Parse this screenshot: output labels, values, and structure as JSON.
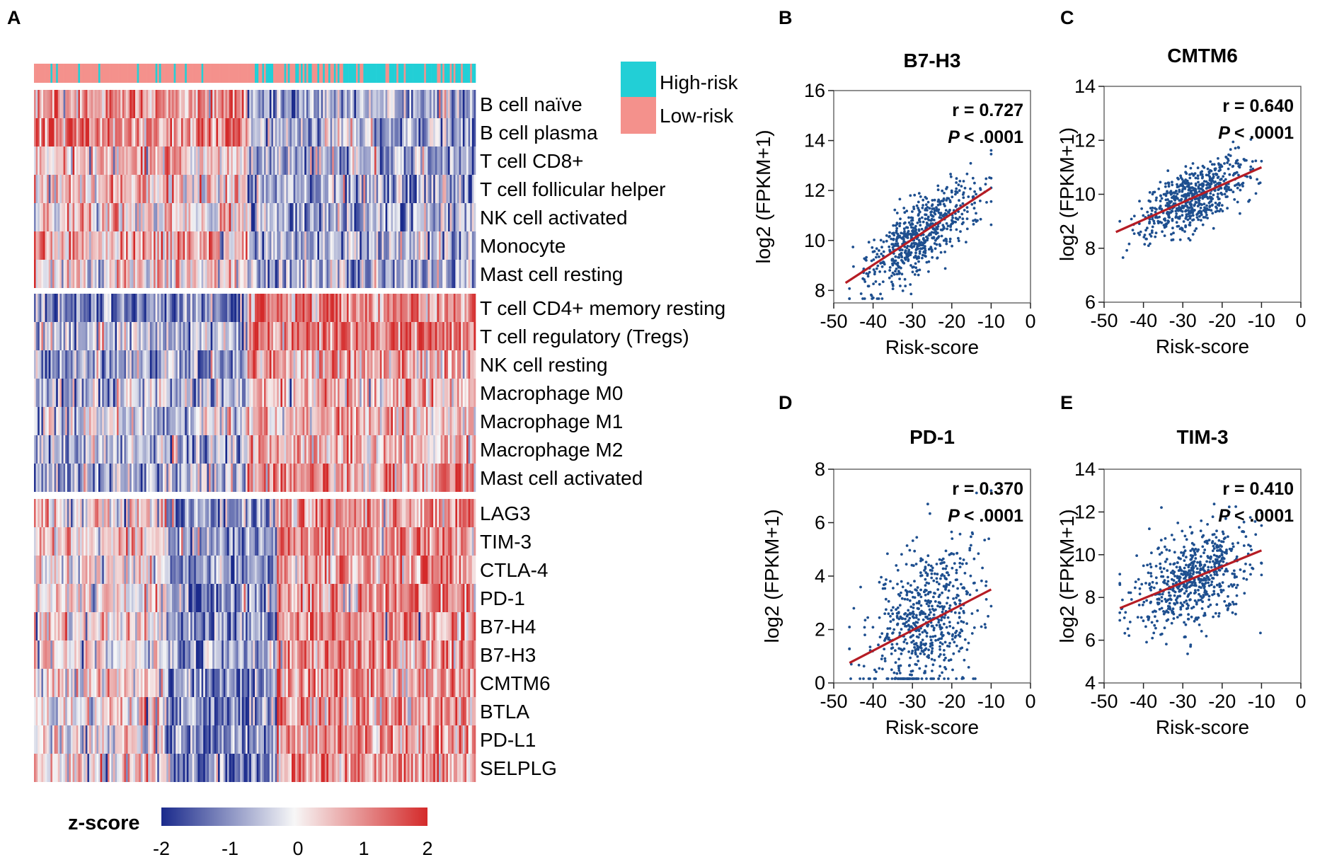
{
  "panels": {
    "A": "A",
    "B": "B",
    "C": "C",
    "D": "D",
    "E": "E"
  },
  "colors": {
    "high_risk": "#22cfd6",
    "low_risk": "#f4918c",
    "z_low": "#1a2a8c",
    "z_mid": "#f7f7f7",
    "z_high": "#d42a2a",
    "dot": "#1e4f8f",
    "fit": "#b51c24"
  },
  "heatmap": {
    "legend": {
      "high": "High-risk",
      "low": "Low-risk"
    },
    "rows": [
      "B cell naïve",
      "B cell plasma",
      "T cell CD8+",
      "T cell follicular helper",
      "NK cell activated",
      "Monocyte",
      "Mast cell resting",
      "T cell CD4+ memory resting",
      "T cell regulatory (Tregs)",
      "NK cell resting",
      "Macrophage M0",
      "Macrophage M1",
      "Macrophage M2",
      "Mast cell activated",
      "LAG3",
      "TIM-3",
      "CTLA-4",
      "PD-1",
      "B7-H4",
      "B7-H3",
      "CMTM6",
      "BTLA",
      "PD-L1",
      "SELPLG"
    ],
    "colorbar": {
      "label": "z-score",
      "ticks": [
        "-2",
        "-1",
        "0",
        "1",
        "2"
      ],
      "range": [
        -2,
        2
      ]
    }
  },
  "chart_data": [
    {
      "panel": "B",
      "type": "scatter",
      "title": "B7-H3",
      "xlabel": "Risk-score",
      "ylabel": "log2 (FPKM+1)",
      "xlim": [
        -50,
        0
      ],
      "ylim": [
        7.5,
        16
      ],
      "xticks": [
        -50,
        -40,
        -30,
        -20,
        -10,
        0
      ],
      "yticks": [
        8,
        10,
        12,
        14,
        16
      ],
      "r_label": "r = 0.727",
      "p_label": "< .0001",
      "p_symbol": "P",
      "fit": {
        "x0": -47,
        "y0": 8.3,
        "x1": -10,
        "y1": 12.1
      },
      "points": {
        "n": 650,
        "x_center": -28,
        "x_sd": 7,
        "x_range": [
          -46,
          -10
        ],
        "y_slope": 0.103,
        "y_intercept": 13.1,
        "y_sd": 0.72
      }
    },
    {
      "panel": "C",
      "type": "scatter",
      "title": "CMTM6",
      "xlabel": "Risk-score",
      "ylabel": "log2 (FPKM+1)",
      "xlim": [
        -50,
        0
      ],
      "ylim": [
        6,
        14
      ],
      "xticks": [
        -50,
        -40,
        -30,
        -20,
        -10,
        0
      ],
      "yticks": [
        6,
        8,
        10,
        12,
        14
      ],
      "r_label": "r = 0.640",
      "p_label": "< .0001",
      "p_symbol": "P",
      "fit": {
        "x0": -47,
        "y0": 8.6,
        "x1": -10,
        "y1": 11.0
      },
      "points": {
        "n": 650,
        "x_center": -27,
        "x_sd": 7,
        "x_range": [
          -46,
          -10
        ],
        "y_slope": 0.065,
        "y_intercept": 11.65,
        "y_sd": 0.55
      }
    },
    {
      "panel": "D",
      "type": "scatter",
      "title": "PD-1",
      "xlabel": "Risk-score",
      "ylabel": "log2 (FPKM+1)",
      "xlim": [
        -50,
        0
      ],
      "ylim": [
        0,
        8
      ],
      "xticks": [
        -50,
        -40,
        -30,
        -20,
        -10,
        0
      ],
      "yticks": [
        0,
        2,
        4,
        6,
        8
      ],
      "r_label": "r = 0.370",
      "p_label": "< .0001",
      "p_symbol": "P",
      "fit": {
        "x0": -46,
        "y0": 0.75,
        "x1": -10,
        "y1": 3.5
      },
      "points": {
        "n": 650,
        "x_center": -27,
        "x_sd": 7,
        "x_range": [
          -46,
          -10
        ],
        "y_slope": 0.076,
        "y_intercept": 4.3,
        "y_sd": 1.35
      }
    },
    {
      "panel": "E",
      "type": "scatter",
      "title": "TIM-3",
      "xlabel": "Risk-score",
      "ylabel": "log2 (FPKM+1)",
      "xlim": [
        -50,
        0
      ],
      "ylim": [
        4,
        14
      ],
      "xticks": [
        -50,
        -40,
        -30,
        -20,
        -10,
        0
      ],
      "yticks": [
        4,
        6,
        8,
        10,
        12,
        14
      ],
      "r_label": "r = 0.410",
      "p_label": "< .0001",
      "p_symbol": "P",
      "fit": {
        "x0": -46,
        "y0": 7.5,
        "x1": -10,
        "y1": 10.2
      },
      "points": {
        "n": 650,
        "x_center": -27,
        "x_sd": 7,
        "x_range": [
          -46,
          -10
        ],
        "y_slope": 0.075,
        "y_intercept": 10.95,
        "y_sd": 1.1
      }
    }
  ]
}
